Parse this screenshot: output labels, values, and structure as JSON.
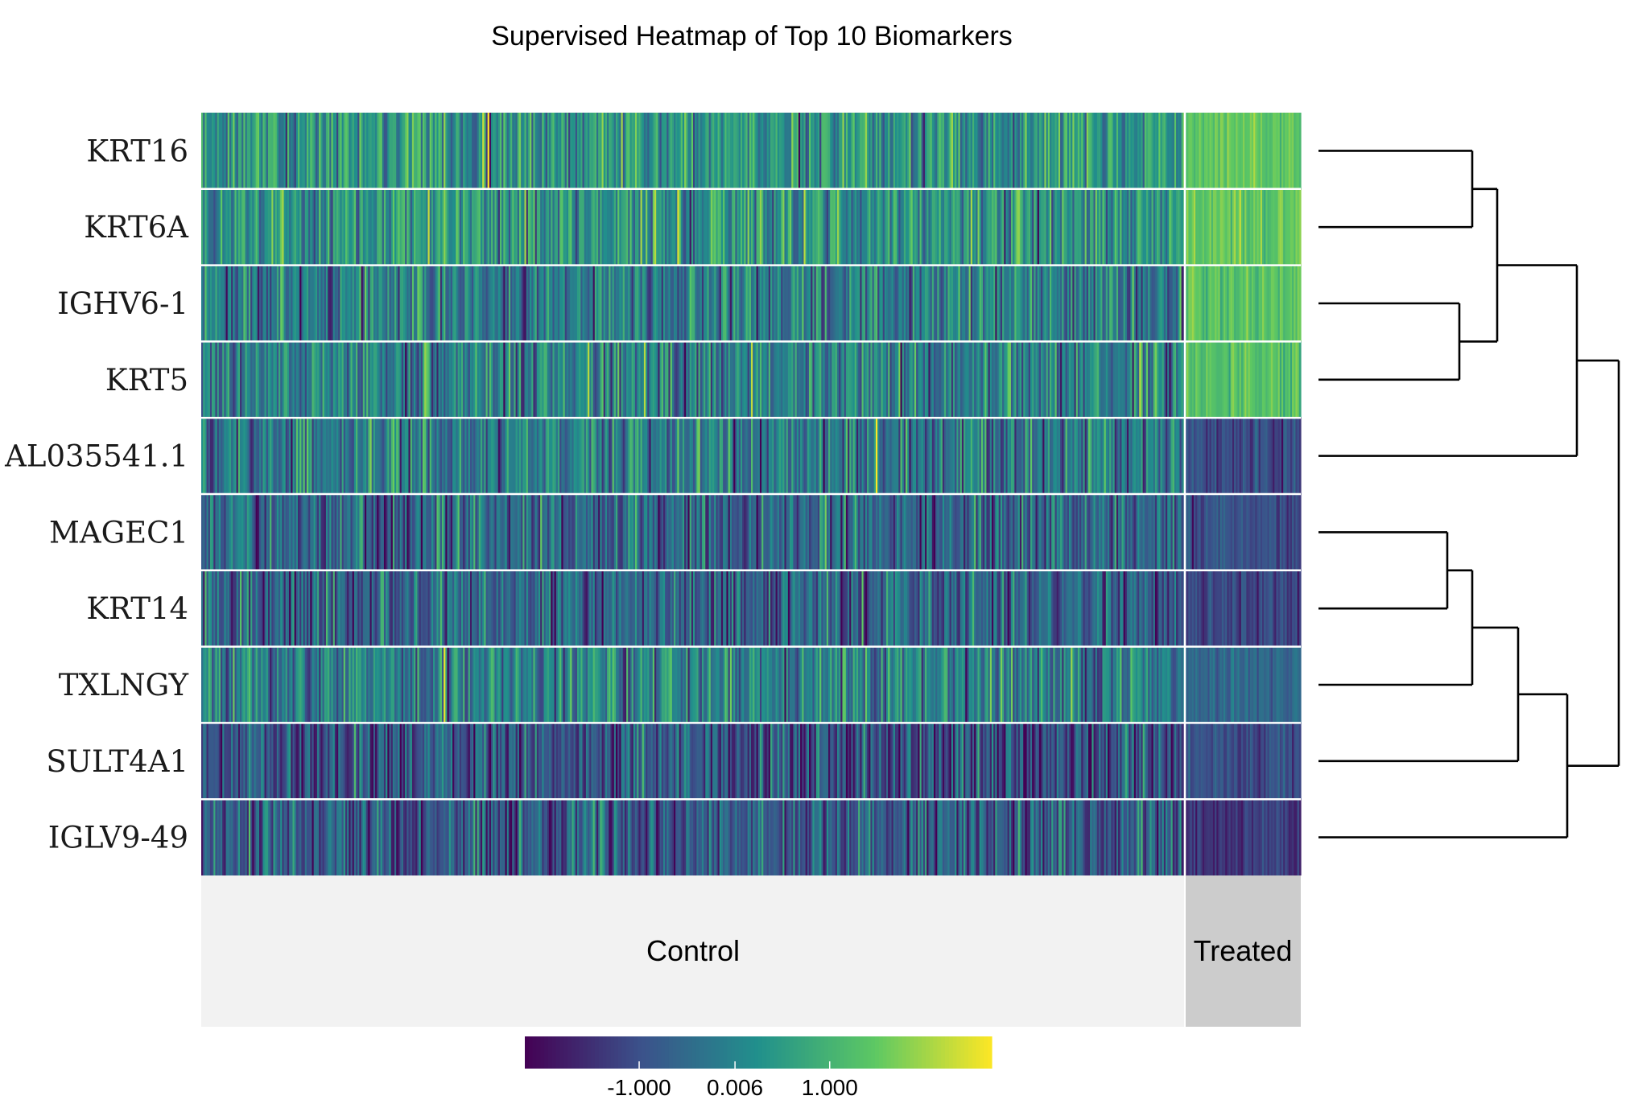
{
  "chart_data": {
    "type": "heatmap",
    "title": "Supervised Heatmap of Top 10 Biomarkers",
    "rows": [
      "KRT16",
      "KRT6A",
      "IGHV6-1",
      "KRT5",
      "AL035541.1",
      "MAGEC1",
      "KRT14",
      "TXLNGY",
      "SULT4A1",
      "IGLV9-49"
    ],
    "groups": [
      {
        "name": "Control",
        "color": "#f2f2f2"
      },
      {
        "name": "Treated",
        "color": "#cccccc"
      }
    ],
    "row_means": [
      {
        "gene": "KRT16",
        "Control": 0.35,
        "Treated": 1.45
      },
      {
        "gene": "KRT6A",
        "Control": 0.35,
        "Treated": 1.5
      },
      {
        "gene": "IGHV6-1",
        "Control": -0.15,
        "Treated": 1.3
      },
      {
        "gene": "KRT5",
        "Control": -0.05,
        "Treated": 1.35
      },
      {
        "gene": "AL035541.1",
        "Control": -0.2,
        "Treated": -1.1
      },
      {
        "gene": "MAGEC1",
        "Control": -0.5,
        "Treated": -1.0
      },
      {
        "gene": "KRT14",
        "Control": -0.6,
        "Treated": -1.2
      },
      {
        "gene": "TXLNGY",
        "Control": -0.05,
        "Treated": -0.5
      },
      {
        "gene": "SULT4A1",
        "Control": -0.95,
        "Treated": -1.05
      },
      {
        "gene": "IGLV9-49",
        "Control": -0.75,
        "Treated": -1.5
      }
    ],
    "colorbar": {
      "palette": "viridis",
      "colors": [
        "#440154",
        "#3b528b",
        "#21908c",
        "#5dc863",
        "#fde725"
      ],
      "range": [
        -2.2,
        2.7
      ],
      "ticks": [
        -1.0,
        0.006,
        1.0
      ],
      "tick_labels": [
        "-1.000",
        "0.006",
        "1.000"
      ]
    },
    "dendrogram": {
      "position": "right",
      "merges": [
        {
          "id": "m1",
          "left": "KRT16",
          "right": "KRT6A"
        },
        {
          "id": "m2",
          "left": "IGHV6-1",
          "right": "KRT5"
        },
        {
          "id": "m3",
          "left": "m1",
          "right": "m2"
        },
        {
          "id": "m4",
          "left": "m3",
          "right": "AL035541.1"
        },
        {
          "id": "m5",
          "left": "MAGEC1",
          "right": "KRT14"
        },
        {
          "id": "m6",
          "left": "m5",
          "right": "TXLNGY"
        },
        {
          "id": "m7",
          "left": "m6",
          "right": "SULT4A1"
        },
        {
          "id": "m8",
          "left": "m7",
          "right": "IGLV9-49"
        },
        {
          "id": "m9",
          "left": "m4",
          "right": "m8"
        }
      ]
    }
  }
}
